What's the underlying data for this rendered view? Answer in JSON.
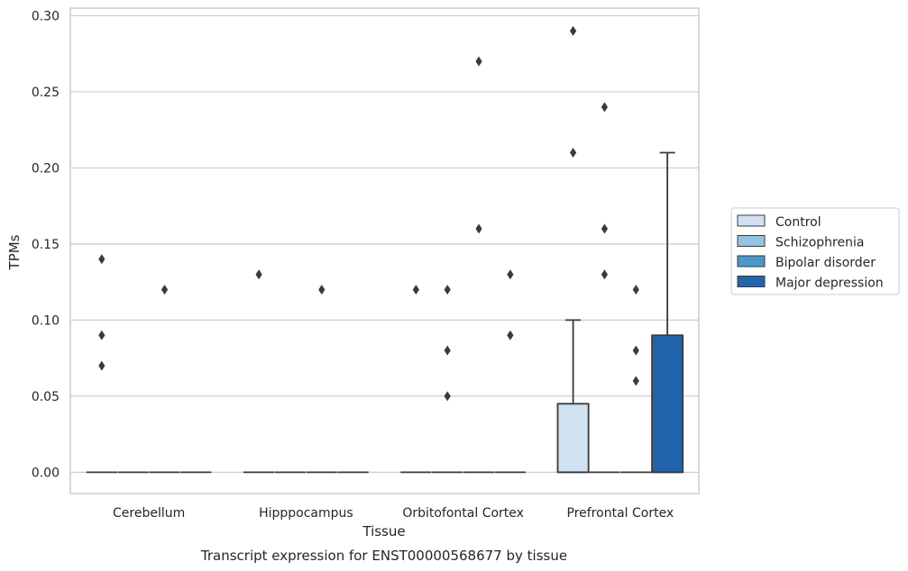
{
  "caption": "Transcript expression for ENST00000568677 by tissue",
  "chart_data": {
    "type": "box",
    "title": "",
    "xlabel": "Tissue",
    "ylabel": "TPMs",
    "ylim": [
      -0.014,
      0.305
    ],
    "yticks": [
      "0.00",
      "0.05",
      "0.10",
      "0.15",
      "0.20",
      "0.25",
      "0.30"
    ],
    "grid": true,
    "legend_position": "right",
    "categories": [
      "Cerebellum",
      "Hipppocampus",
      "Orbitofontal Cortex",
      "Prefrontal Cortex"
    ],
    "series": [
      {
        "name": "Control",
        "color": "#d0e1f2",
        "boxes": [
          {
            "q1": 0,
            "median": 0,
            "q3": 0,
            "whisker_low": 0,
            "whisker_high": 0,
            "outliers": [
              0.14,
              0.09,
              0.07
            ]
          },
          {
            "q1": 0,
            "median": 0,
            "q3": 0,
            "whisker_low": 0,
            "whisker_high": 0,
            "outliers": [
              0.13
            ]
          },
          {
            "q1": 0,
            "median": 0,
            "q3": 0,
            "whisker_low": 0,
            "whisker_high": 0,
            "outliers": [
              0.12
            ]
          },
          {
            "q1": 0,
            "median": 0,
            "q3": 0.045,
            "whisker_low": 0,
            "whisker_high": 0.1,
            "outliers": [
              0.29,
              0.21
            ]
          }
        ]
      },
      {
        "name": "Schizophrenia",
        "color": "#94c4df",
        "boxes": [
          {
            "q1": 0,
            "median": 0,
            "q3": 0,
            "whisker_low": 0,
            "whisker_high": 0,
            "outliers": []
          },
          {
            "q1": 0,
            "median": 0,
            "q3": 0,
            "whisker_low": 0,
            "whisker_high": 0,
            "outliers": []
          },
          {
            "q1": 0,
            "median": 0,
            "q3": 0,
            "whisker_low": 0,
            "whisker_high": 0,
            "outliers": [
              0.12,
              0.08,
              0.05
            ]
          },
          {
            "q1": 0,
            "median": 0,
            "q3": 0,
            "whisker_low": 0,
            "whisker_high": 0,
            "outliers": [
              0.24,
              0.16,
              0.13
            ]
          }
        ]
      },
      {
        "name": "Bipolar disorder",
        "color": "#4a98c9",
        "boxes": [
          {
            "q1": 0,
            "median": 0,
            "q3": 0,
            "whisker_low": 0,
            "whisker_high": 0,
            "outliers": [
              0.12
            ]
          },
          {
            "q1": 0,
            "median": 0,
            "q3": 0,
            "whisker_low": 0,
            "whisker_high": 0,
            "outliers": [
              0.12
            ]
          },
          {
            "q1": 0,
            "median": 0,
            "q3": 0,
            "whisker_low": 0,
            "whisker_high": 0,
            "outliers": [
              0.27,
              0.16
            ]
          },
          {
            "q1": 0,
            "median": 0,
            "q3": 0,
            "whisker_low": 0,
            "whisker_high": 0,
            "outliers": [
              0.12,
              0.08,
              0.06
            ]
          }
        ]
      },
      {
        "name": "Major depression",
        "color": "#2164ab",
        "boxes": [
          {
            "q1": 0,
            "median": 0,
            "q3": 0,
            "whisker_low": 0,
            "whisker_high": 0,
            "outliers": []
          },
          {
            "q1": 0,
            "median": 0,
            "q3": 0,
            "whisker_low": 0,
            "whisker_high": 0,
            "outliers": []
          },
          {
            "q1": 0,
            "median": 0,
            "q3": 0,
            "whisker_low": 0,
            "whisker_high": 0,
            "outliers": [
              0.13,
              0.09
            ]
          },
          {
            "q1": 0,
            "median": 0,
            "q3": 0.09,
            "whisker_low": 0,
            "whisker_high": 0.21,
            "outliers": []
          }
        ]
      }
    ]
  }
}
